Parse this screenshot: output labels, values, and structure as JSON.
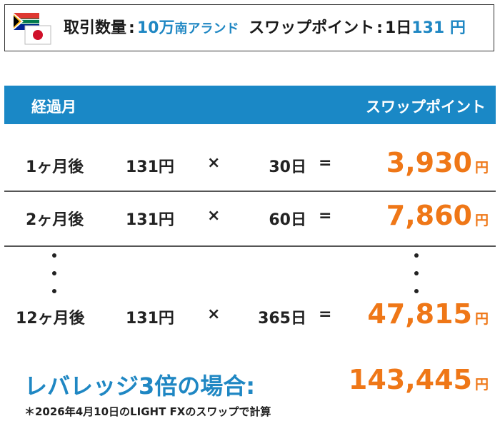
{
  "header": {
    "label1": "取引数量",
    "colon": ":",
    "amount": "10万",
    "currency": "南アランド",
    "label2": "スワップポイント",
    "per_day": "1日",
    "swap": "131",
    "yen": "円"
  },
  "flags": [
    "south-africa-flag",
    "japan-flag"
  ],
  "table": {
    "col_left": "経過月",
    "col_right": "スワップポイント",
    "rows": [
      {
        "month": "1ヶ月後",
        "rate": "131円",
        "op": "×",
        "days": "30日",
        "eq": "=",
        "result": "3,930",
        "unit": "円"
      },
      {
        "month": "2ヶ月後",
        "rate": "131円",
        "op": "×",
        "days": "60日",
        "eq": "=",
        "result": "7,860",
        "unit": "円"
      },
      {
        "month": "12ヶ月後",
        "rate": "131円",
        "op": "×",
        "days": "365日",
        "eq": "=",
        "result": "47,815",
        "unit": "円"
      }
    ]
  },
  "leverage": {
    "label": "レバレッジ3倍の場合:",
    "value": "143,445",
    "unit": "円"
  },
  "note": "＊2026年4月10日のLIGHT FXのスワップで計算",
  "colors": {
    "accent_blue": "#1f87c3",
    "header_blue": "#1a88c6",
    "orange": "#ef7717"
  }
}
